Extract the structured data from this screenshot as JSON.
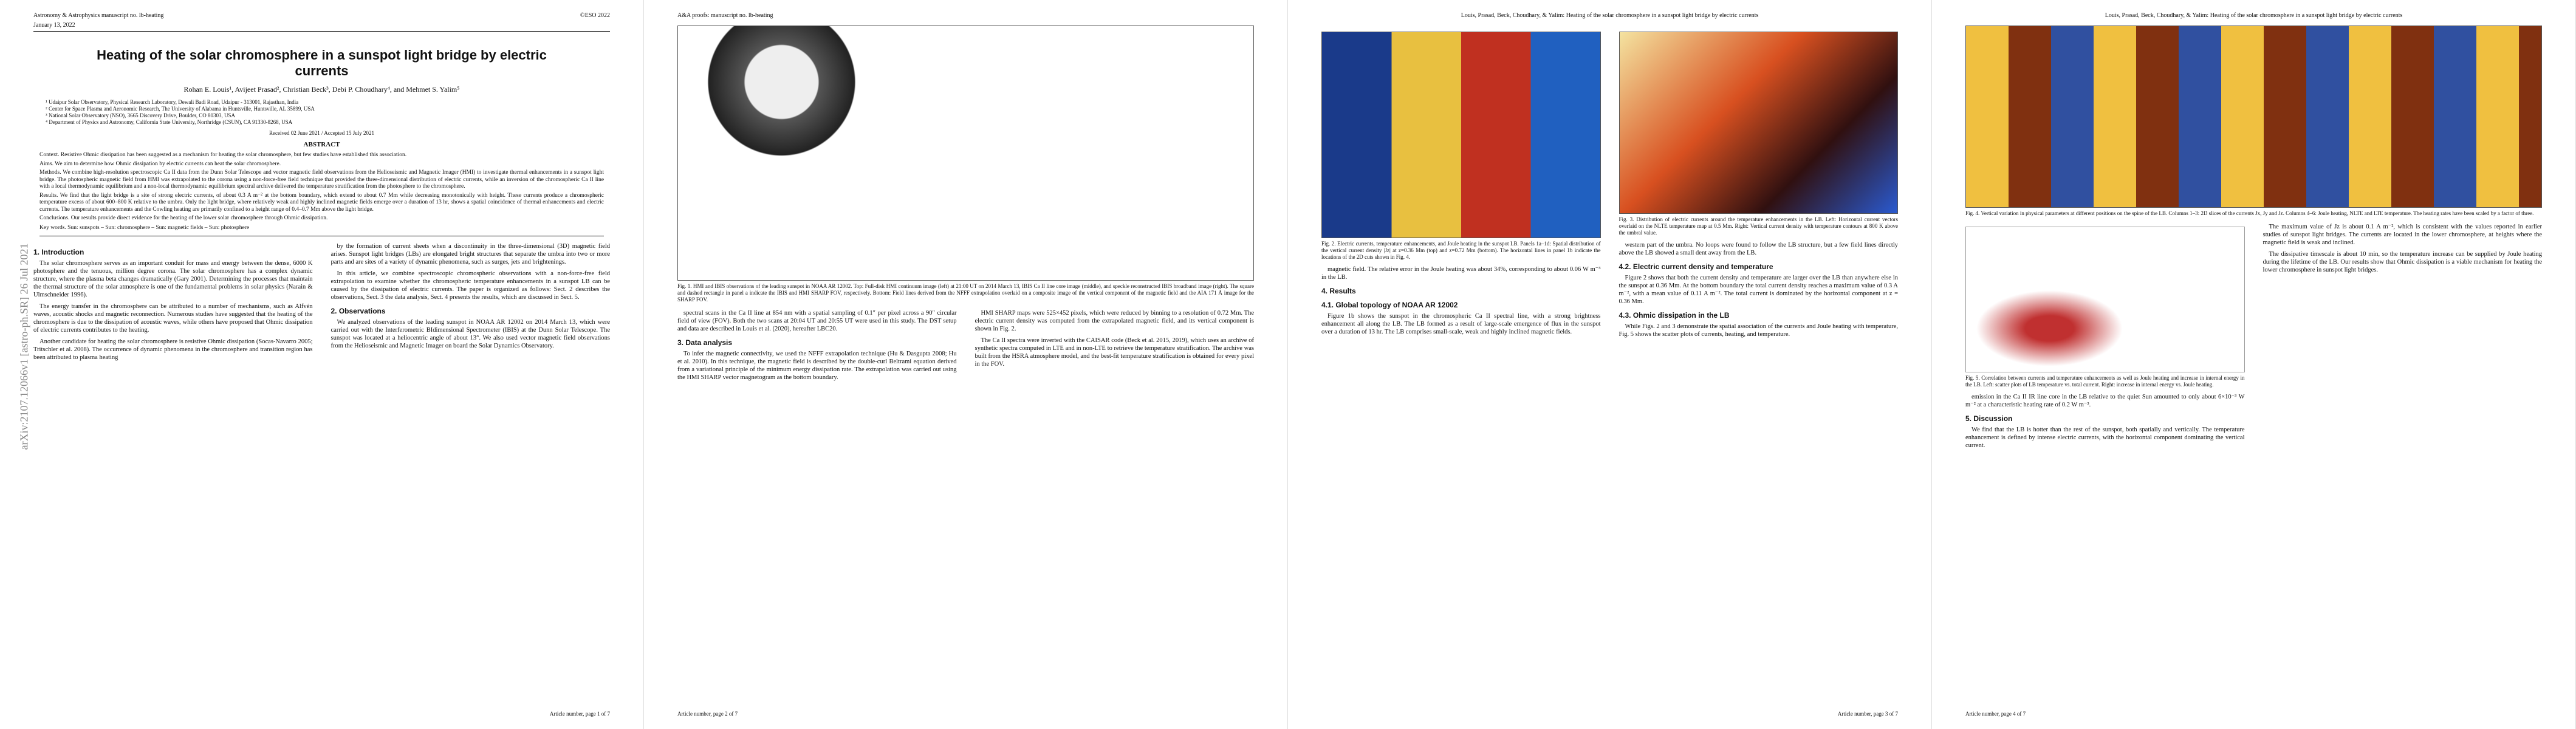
{
  "arxiv_id": "arXiv:2107.12066v1  [astro-ph.SR]  26 Jul 2021",
  "pages": [
    {
      "header_left": "Astronomy & Astrophysics manuscript no. lb-heating",
      "header_right": "©ESO 2022",
      "date": "January 13, 2022",
      "title": "Heating of the solar chromosphere in a sunspot light bridge by electric currents",
      "authors": "Rohan E. Louis¹, Avijeet Prasad², Christian Beck³, Debi P. Choudhary⁴, and Mehmet S. Yalim⁵",
      "affiliations": [
        "¹ Udaipur Solar Observatory, Physical Research Laboratory, Dewali Badi Road, Udaipur - 313001, Rajasthan, India",
        "² Center for Space Plasma and Aeronomic Research, The University of Alabama in Huntsville, Huntsville, AL 35899, USA",
        "³ National Solar Observatory (NSO), 3665 Discovery Drive, Boulder, CO 80303, USA",
        "⁴ Department of Physics and Astronomy, California State University, Northridge (CSUN), CA 91330-8268, USA"
      ],
      "received": "Received 02 June 2021 / Accepted 15 July 2021",
      "abstract_heading": "ABSTRACT",
      "abstract": [
        "Context. Resistive Ohmic dissipation has been suggested as a mechanism for heating the solar chromosphere, but few studies have established this association.",
        "Aims. We aim to determine how Ohmic dissipation by electric currents can heat the solar chromosphere.",
        "Methods. We combine high-resolution spectroscopic Ca II data from the Dunn Solar Telescope and vector magnetic field observations from the Helioseismic and Magnetic Imager (HMI) to investigate thermal enhancements in a sunspot light bridge. The photospheric magnetic field from HMI was extrapolated to the corona using a non-force-free field technique that provided the three-dimensional distribution of electric currents, while an inversion of the chromospheric Ca II line with a local thermodynamic equilibrium and a non-local thermodynamic equilibrium spectral archive delivered the temperature stratification from the photosphere to the chromosphere.",
        "Results. We find that the light bridge is a site of strong electric currents, of about 0.3 A m⁻² at the bottom boundary, which extend to about 0.7 Mm while decreasing monotonically with height. These currents produce a chromospheric temperature excess of about 600–800 K relative to the umbra. Only the light bridge, where relatively weak and highly inclined magnetic fields emerge over a duration of 13 hr, shows a spatial coincidence of thermal enhancements and electric currents. The temperature enhancements and the Cowling heating are primarily confined to a height range of 0.4–0.7 Mm above the light bridge.",
        "Conclusions. Our results provide direct evidence for the heating of the lower solar chromosphere through Ohmic dissipation."
      ],
      "keywords": "Key words. Sun: sunspots – Sun: chromosphere – Sun: magnetic fields – Sun: photosphere",
      "columns": [
        [
          {
            "heading": "1. Introduction"
          },
          {
            "text": "The solar chromosphere serves as an important conduit for mass and energy between the dense, 6000 K photosphere and the tenuous, million degree corona. The solar chromosphere has a complex dynamic structure, where the plasma beta changes dramatically (Gary 2001). Determining the processes that maintain the thermal structure of the solar atmosphere is one of the fundamental problems in solar physics (Narain & Ulmschneider 1996)."
          },
          {
            "text": "The energy transfer in the chromosphere can be attributed to a number of mechanisms, such as Alfvén waves, acoustic shocks and magnetic reconnection. Numerous studies have suggested that the heating of the chromosphere is due to the dissipation of acoustic waves, while others have proposed that Ohmic dissipation of electric currents contributes to the heating."
          },
          {
            "text": "Another candidate for heating the solar chromosphere is resistive Ohmic dissipation (Socas-Navarro 2005; Tritschler et al. 2008). The occurrence of dynamic phenomena in the chromosphere and transition region has been attributed to plasma heating"
          }
        ],
        [
          {
            "text": "by the formation of current sheets when a discontinuity in the three-dimensional (3D) magnetic field arises. Sunspot light bridges (LBs) are elongated bright structures that separate the umbra into two or more parts and are sites of a variety of dynamic phenomena, such as surges, jets and brightenings."
          },
          {
            "text": "In this article, we combine spectroscopic chromospheric observations with a non-force-free field extrapolation to examine whether the chromospheric temperature enhancements in a sunspot LB can be caused by the dissipation of electric currents. The paper is organized as follows: Sect. 2 describes the observations, Sect. 3 the data analysis, Sect. 4 presents the results, which are discussed in Sect. 5."
          },
          {
            "heading": "2. Observations"
          },
          {
            "text": "We analyzed observations of the leading sunspot in NOAA AR 12002 on 2014 March 13, which were carried out with the Interferometric BIdimensional Spectrometer (IBIS) at the Dunn Solar Telescope. The sunspot was located at a heliocentric angle of about 13°. We also used vector magnetic field observations from the Helioseismic and Magnetic Imager on board the Solar Dynamics Observatory."
          }
        ]
      ],
      "footer": "Article number, page 1 of 7"
    },
    {
      "header_left": "A&A proofs: manuscript no. lb-heating",
      "top_figure": "Fig. 1. HMI and IBIS observations of the leading sunspot in NOAA AR 12002. Top: Full-disk HMI continuum image (left) at 21:00 UT on 2014 March 13, IBIS Ca II line core image (middle), and speckle reconstructed IBIS broadband image (right). The square and dashed rectangle in panel a indicate the IBIS and HMI SHARP FOV, respectively. Bottom: Field lines derived from the NFFF extrapolation overlaid on a composite image of the vertical component of the magnetic field and the AIA 171 Å image for the SHARP FOV.",
      "columns": [
        [
          {
            "text": "spectral scans in the Ca II line at 854 nm with a spatial sampling of 0.1″ per pixel across a 90″ circular field of view (FOV). Both the two scans at 20:04 UT and 20:55 UT were used in this study. The DST setup and data are described in Louis et al. (2020), hereafter LBC20."
          },
          {
            "heading": "3. Data analysis"
          },
          {
            "text": "To infer the magnetic connectivity, we used the NFFF extrapolation technique (Hu & Dasgupta 2008; Hu et al. 2010). In this technique, the magnetic field is described by the double-curl Beltrami equation derived from a variational principle of the minimum energy dissipation rate. The extrapolation was carried out using the HMI SHARP vector magnetogram as the bottom boundary."
          }
        ],
        [
          {
            "text": "HMI SHARP maps were 525×452 pixels, which were reduced by binning to a resolution of 0.72 Mm. The electric current density was computed from the extrapolated magnetic field, and its vertical component is shown in Fig. 2."
          },
          {
            "text": "The Ca II spectra were inverted with the CAISAR code (Beck et al. 2015, 2019), which uses an archive of synthetic spectra computed in LTE and in non-LTE to retrieve the temperature stratification. The archive was built from the HSRA atmosphere model, and the best-fit temperature stratification is obtained for every pixel in the FOV."
          }
        ]
      ],
      "footer": "Article number, page 2 of 7"
    },
    {
      "header_center": "Louis, Prasad, Beck, Choudhary, & Yalim: Heating of the solar chromosphere in a sunspot light bridge by electric currents",
      "columns": [
        [
          {
            "figure": "Fig. 2. Electric currents, temperature enhancements, and Joule heating in the sunspot LB. Panels 1a–1d: Spatial distribution of the vertical current density |Jz| at z=0.36 Mm (top) and z=0.72 Mm (bottom). The horizontal lines in panel 1b indicate the locations of the 2D cuts shown in Fig. 4."
          },
          {
            "text": "magnetic field. The relative error in the Joule heating was about 34%, corresponding to about 0.06 W m⁻³ in the LB."
          },
          {
            "heading": "4. Results"
          },
          {
            "heading": "4.1. Global topology of NOAA AR 12002"
          },
          {
            "text": "Figure 1b shows the sunspot in the chromospheric Ca II spectral line, with a strong brightness enhancement all along the LB. The LB formed as a result of large-scale emergence of flux in the sunspot over a duration of 13 hr. The LB comprises small-scale, weak and highly inclined magnetic fields."
          }
        ],
        [
          {
            "figure": "Fig. 3. Distribution of electric currents around the temperature enhancements in the LB. Left: Horizontal current vectors overlaid on the NLTE temperature map at 0.5 Mm. Right: Vertical current density with temperature contours at 800 K above the umbral value."
          },
          {
            "text": "western part of the umbra. No loops were found to follow the LB structure, but a few field lines directly above the LB showed a small dent away from the LB."
          },
          {
            "heading": "4.2. Electric current density and temperature"
          },
          {
            "text": "Figure 2 shows that both the current density and temperature are larger over the LB than anywhere else in the sunspot at 0.36 Mm. At the bottom boundary the total current density reaches a maximum value of 0.3 A m⁻², with a mean value of 0.11 A m⁻². The total current is dominated by the horizontal component at z = 0.36 Mm."
          },
          {
            "heading": "4.3. Ohmic dissipation in the LB"
          },
          {
            "text": "While Figs. 2 and 3 demonstrate the spatial association of the currents and Joule heating with temperature, Fig. 5 shows the scatter plots of currents, heating, and temperature."
          }
        ]
      ],
      "footer": "Article number, page 3 of 7"
    },
    {
      "header_center": "Louis, Prasad, Beck, Choudhary, & Yalim: Heating of the solar chromosphere in a sunspot light bridge by electric currents",
      "top_figure": "Fig. 4. Vertical variation in physical parameters at different positions on the spine of the LB. Columns 1–3: 2D slices of the currents Jx, Jy and Jz. Columns 4–6: Joule heating, NLTE and LTE temperature. The heating rates have been scaled by a factor of three.",
      "columns": [
        [
          {
            "figure": "Fig. 5. Correlation between currents and temperature enhancements as well as Joule heating and increase in internal energy in the LB. Left: scatter plots of LB temperature vs. total current. Right: increase in internal energy vs. Joule heating."
          },
          {
            "text": "emission in the Ca II IR line core in the LB relative to the quiet Sun amounted to only about 6×10⁻³ W m⁻² at a characteristic heating rate of 0.2 W m⁻³."
          },
          {
            "heading": "5. Discussion"
          },
          {
            "text": "We find that the LB is hotter than the rest of the sunspot, both spatially and vertically. The temperature enhancement is defined by intense electric currents, with the horizontal component dominating the vertical current."
          }
        ],
        [
          {
            "text": "The maximum value of Jz is about 0.1 A m⁻², which is consistent with the values reported in earlier studies of sunspot light bridges. The currents are located in the lower chromosphere, at heights where the magnetic field is weak and inclined."
          },
          {
            "text": "The dissipative timescale is about 10 min, so the temperature increase can be supplied by Joule heating during the lifetime of the LB. Our results show that Ohmic dissipation is a viable mechanism for heating the lower chromosphere in sunspot light bridges."
          }
        ]
      ],
      "footer": "Article number, page 4 of 7"
    }
  ]
}
